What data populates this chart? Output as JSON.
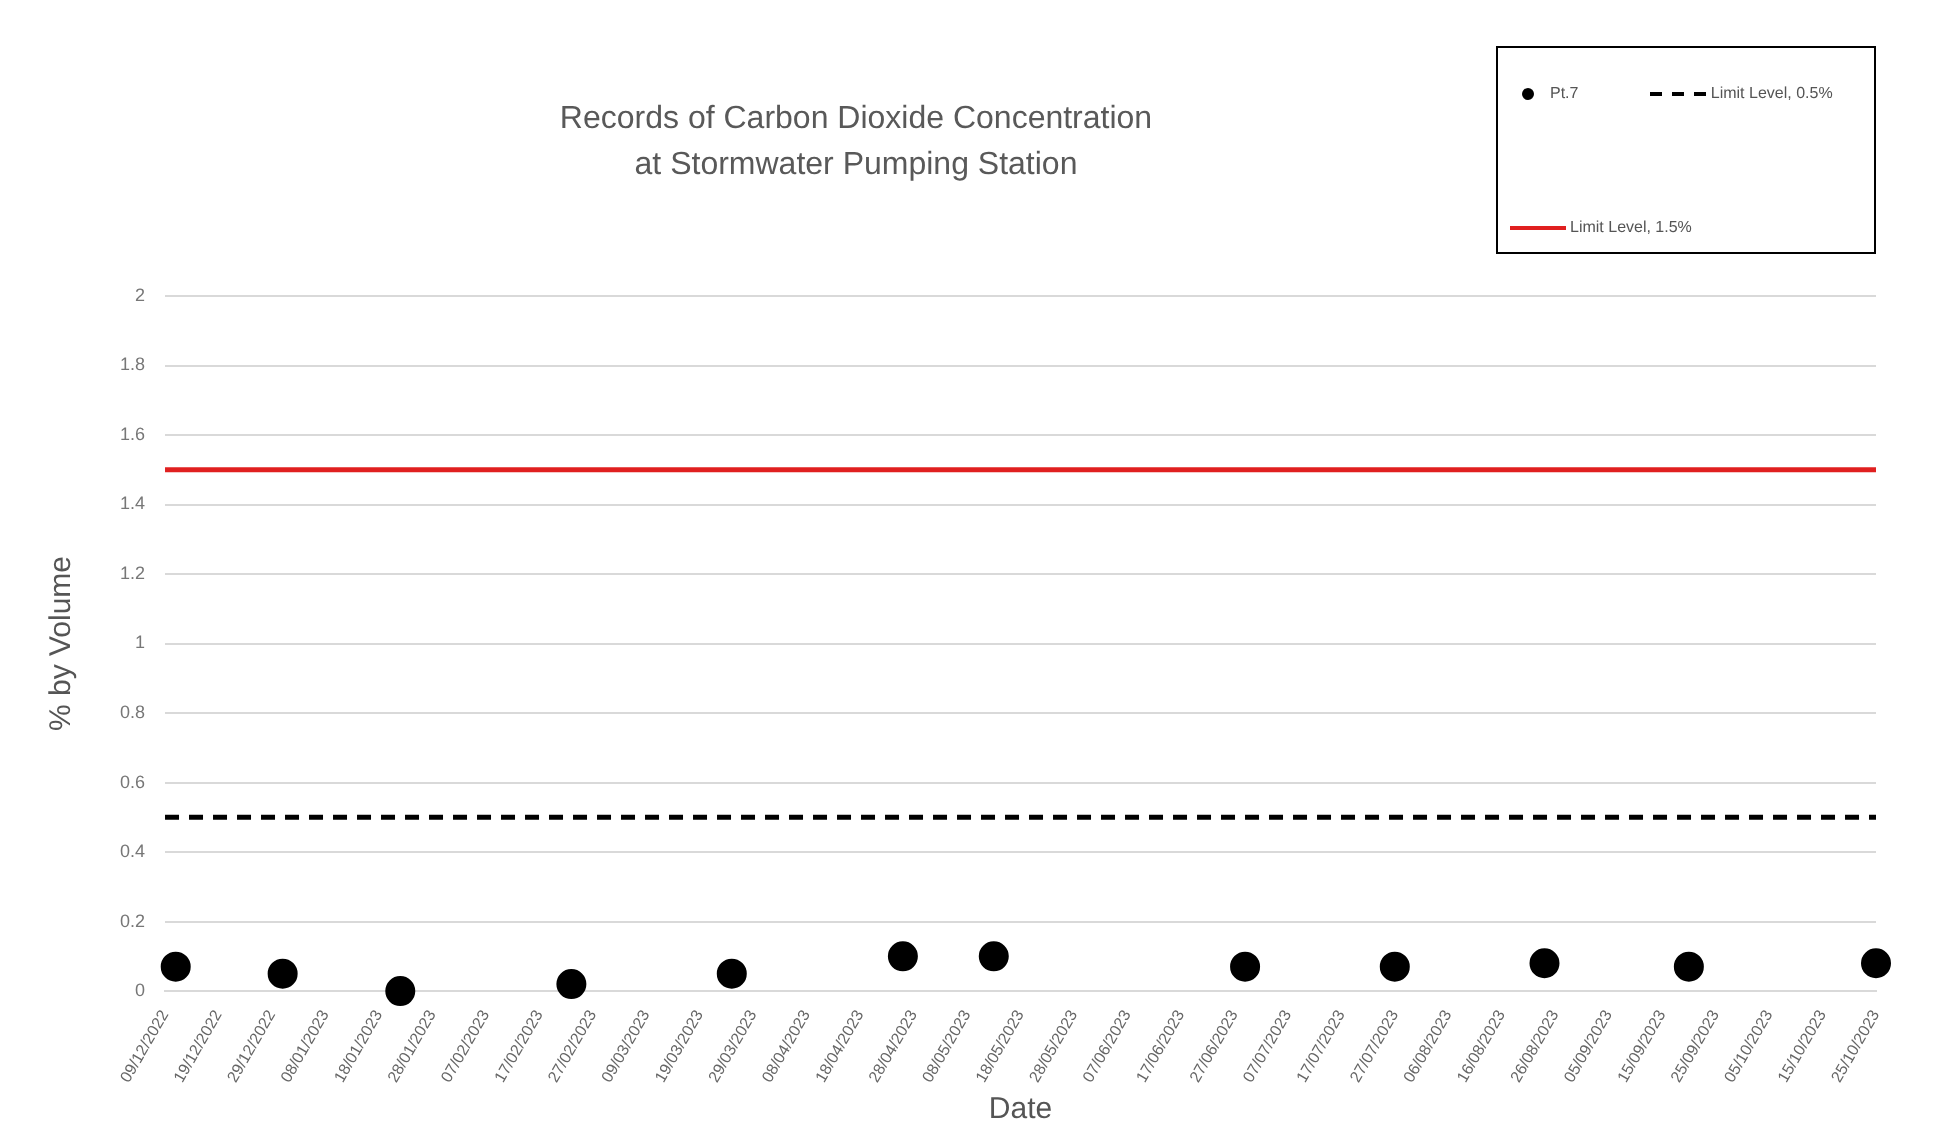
{
  "chart_data": {
    "type": "scatter",
    "title": "Records of Carbon Dioxide Concentration\nat Stormwater Pumping Station",
    "xlabel": "Date",
    "ylabel": "% by Volume",
    "x": [
      "2022-12-11",
      "2022-12-31",
      "2023-01-22",
      "2023-02-23",
      "2023-03-25",
      "2023-04-26",
      "2023-05-13",
      "2023-06-29",
      "2023-07-27",
      "2023-08-24",
      "2023-09-20",
      "2023-10-25"
    ],
    "series": [
      {
        "name": "Pt.7",
        "color": "#000000",
        "values": [
          0.07,
          0.05,
          0.0,
          0.02,
          0.05,
          0.1,
          0.1,
          0.07,
          0.07,
          0.08,
          0.07,
          0.08
        ]
      }
    ],
    "ref_lines": [
      {
        "axis": "y",
        "value": 0.5,
        "label": "Limit Level, 0.5%",
        "color": "#000000",
        "line_style": "dashed"
      },
      {
        "axis": "y",
        "value": 1.5,
        "label": "Limit Level, 1.5%",
        "color": "#e02020",
        "line_style": "solid"
      }
    ],
    "xlim": [
      "2022-12-09",
      "2023-10-25"
    ],
    "xticks": [
      {
        "value": "2022-12-09",
        "label": "09/12/2022"
      },
      {
        "value": "2022-12-19",
        "label": "19/12/2022"
      },
      {
        "value": "2022-12-29",
        "label": "29/12/2022"
      },
      {
        "value": "2023-01-08",
        "label": "08/01/2023"
      },
      {
        "value": "2023-01-18",
        "label": "18/01/2023"
      },
      {
        "value": "2023-01-28",
        "label": "28/01/2023"
      },
      {
        "value": "2023-02-07",
        "label": "07/02/2023"
      },
      {
        "value": "2023-02-17",
        "label": "17/02/2023"
      },
      {
        "value": "2023-02-27",
        "label": "27/02/2023"
      },
      {
        "value": "2023-03-09",
        "label": "09/03/2023"
      },
      {
        "value": "2023-03-19",
        "label": "19/03/2023"
      },
      {
        "value": "2023-03-29",
        "label": "29/03/2023"
      },
      {
        "value": "2023-04-08",
        "label": "08/04/2023"
      },
      {
        "value": "2023-04-18",
        "label": "18/04/2023"
      },
      {
        "value": "2023-04-28",
        "label": "28/04/2023"
      },
      {
        "value": "2023-05-08",
        "label": "08/05/2023"
      },
      {
        "value": "2023-05-18",
        "label": "18/05/2023"
      },
      {
        "value": "2023-05-28",
        "label": "28/05/2023"
      },
      {
        "value": "2023-06-07",
        "label": "07/06/2023"
      },
      {
        "value": "2023-06-17",
        "label": "17/06/2023"
      },
      {
        "value": "2023-06-27",
        "label": "27/06/2023"
      },
      {
        "value": "2023-07-07",
        "label": "07/07/2023"
      },
      {
        "value": "2023-07-17",
        "label": "17/07/2023"
      },
      {
        "value": "2023-07-27",
        "label": "27/07/2023"
      },
      {
        "value": "2023-08-06",
        "label": "06/08/2023"
      },
      {
        "value": "2023-08-16",
        "label": "16/08/2023"
      },
      {
        "value": "2023-08-26",
        "label": "26/08/2023"
      },
      {
        "value": "2023-09-05",
        "label": "05/09/2023"
      },
      {
        "value": "2023-09-15",
        "label": "15/09/2023"
      },
      {
        "value": "2023-09-25",
        "label": "25/09/2023"
      },
      {
        "value": "2023-10-05",
        "label": "05/10/2023"
      },
      {
        "value": "2023-10-15",
        "label": "15/10/2023"
      },
      {
        "value": "2023-10-25",
        "label": "25/10/2023"
      }
    ],
    "ylim": [
      0,
      2
    ],
    "yticks": [
      0,
      0.2,
      0.4,
      0.6,
      0.8,
      1,
      1.2,
      1.4,
      1.6,
      1.8,
      2
    ],
    "grid": "y",
    "legend": "top right",
    "marker": "circle"
  }
}
